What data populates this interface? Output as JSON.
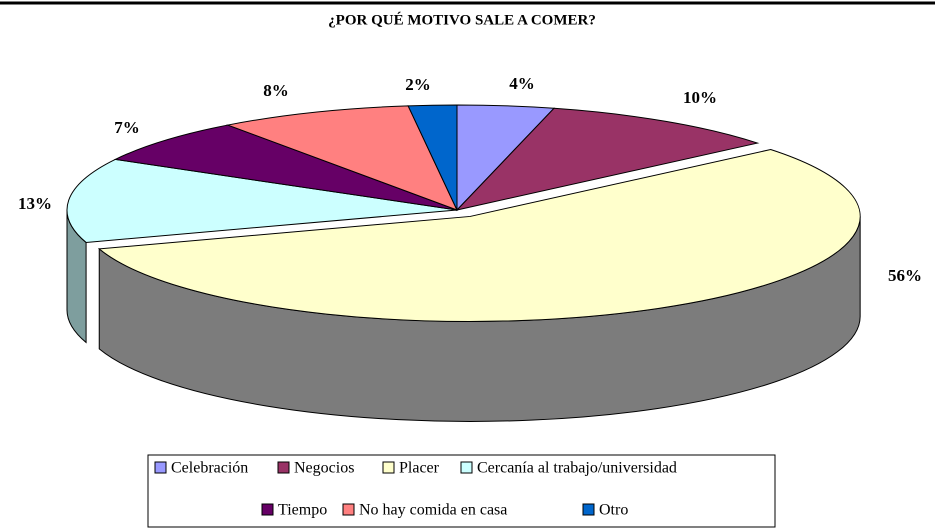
{
  "chart_data": {
    "type": "pie",
    "title": "¿POR QUÉ MOTIVO SALE A COMER?",
    "categories": [
      "Celebración",
      "Negocios",
      "Placer",
      "Cercanía al trabajo/universidad",
      "Tiempo",
      "No hay comida en casa",
      "Otro"
    ],
    "values": [
      4,
      10,
      56,
      13,
      7,
      8,
      2
    ],
    "value_labels": [
      "4%",
      "10%",
      "56%",
      "13%",
      "7%",
      "8%",
      "2%"
    ],
    "colors": [
      "#9999ff",
      "#993366",
      "#ffffcc",
      "#ccffff",
      "#660066",
      "#ff8080",
      "#0066cc"
    ],
    "exploded": "Placer",
    "legend": "bottom"
  }
}
